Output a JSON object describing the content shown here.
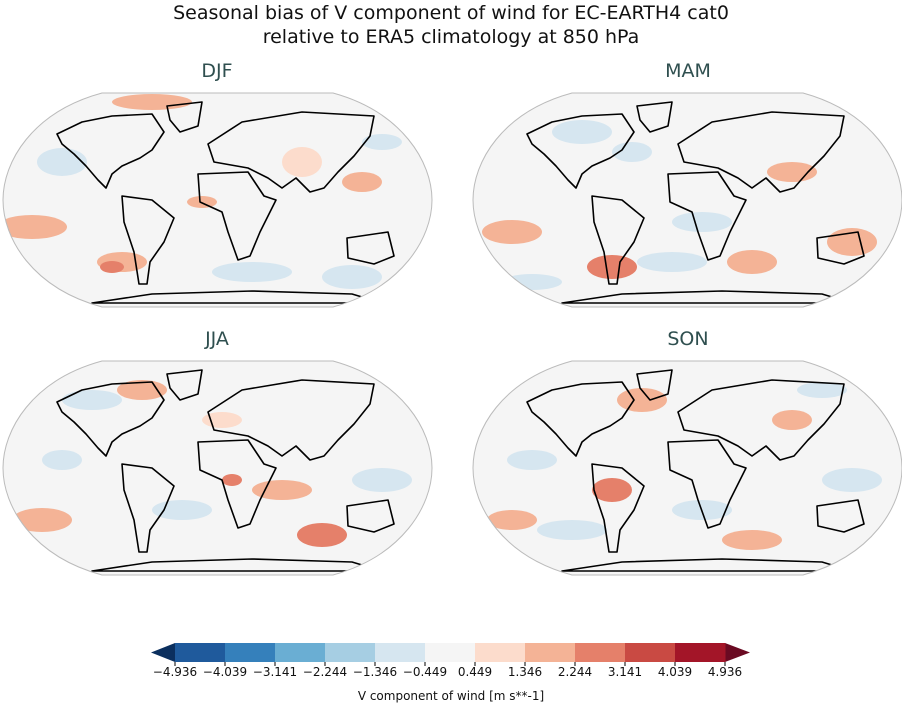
{
  "title_line1": "Seasonal bias of V component of wind for EC-EARTH4 cat0",
  "title_line2": "relative to ERA5 climatology at 850 hPa",
  "panels": [
    {
      "label": "DJF"
    },
    {
      "label": "MAM"
    },
    {
      "label": "JJA"
    },
    {
      "label": "SON"
    }
  ],
  "colorbar": {
    "label": "V component of wind [m s**-1]",
    "ticks": [
      "−4.936",
      "−4.039",
      "−3.141",
      "−2.244",
      "−1.346",
      "−0.449",
      "0.449",
      "1.346",
      "2.244",
      "3.141",
      "4.039",
      "4.936"
    ],
    "colors": [
      "#1f5a9c",
      "#3580bb",
      "#6aaed3",
      "#a6cee3",
      "#d6e6f0",
      "#f5f5f5",
      "#fcdccc",
      "#f4b396",
      "#e5806a",
      "#c94a43",
      "#a31528"
    ],
    "under_color": "#0b2f5e",
    "over_color": "#6a0a22",
    "extend": "both"
  },
  "projection": "Robinson",
  "colormap": "RdBu_r"
}
